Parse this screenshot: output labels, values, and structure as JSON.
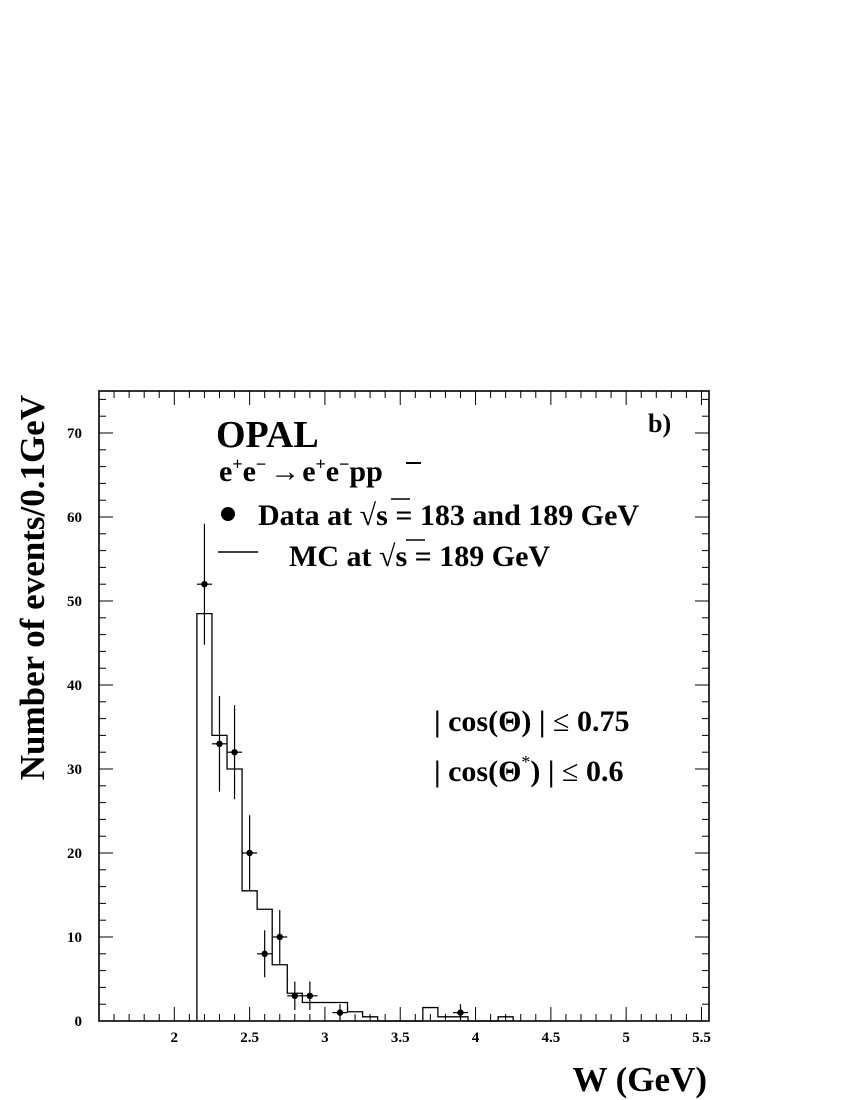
{
  "chart_data": {
    "type": "scatter",
    "title": "OPAL",
    "panel_label": "b)",
    "reaction": {
      "lhs": [
        "e",
        "+",
        "e",
        "−"
      ],
      "arrow": "→",
      "rhs": [
        "e",
        "+",
        "e",
        "−",
        "p",
        "p"
      ]
    },
    "legend": {
      "placement": "top",
      "data": {
        "prefix": "Data at ",
        "root": "√",
        "var": "s",
        "suffix": " = 183 and 189 GeV"
      },
      "mc": {
        "prefix": "MC at ",
        "root": "√",
        "var": "s",
        "suffix": " = 189 GeV"
      }
    },
    "cuts": {
      "cut1": {
        "open": "| cos(Θ) | ",
        "rel": "≤",
        "value": " 0.75"
      },
      "cut2": {
        "open": "| cos(Θ",
        "sup": "*",
        "close": ") | ",
        "rel": "≤",
        "value": " 0.6"
      }
    },
    "xlabel": "W (GeV)",
    "ylabel": "Number of events/0.1GeV",
    "xlim": [
      1.5,
      5.55
    ],
    "ylim": [
      0,
      75
    ],
    "xticks": [
      2,
      2.5,
      3,
      3.5,
      4,
      4.5,
      5,
      5.5
    ],
    "xtick_labels": [
      "2",
      "2.5",
      "3",
      "3.5",
      "4",
      "4.5",
      "5",
      "5.5"
    ],
    "yticks": [
      0,
      10,
      20,
      30,
      40,
      50,
      60,
      70
    ],
    "ytick_labels": [
      "0",
      "10",
      "20",
      "30",
      "40",
      "50",
      "60",
      "70"
    ],
    "grid": false,
    "data_points": {
      "name": "Data at √s = 183 and 189 GeV",
      "x": [
        2.2,
        2.3,
        2.4,
        2.5,
        2.6,
        2.7,
        2.8,
        2.9,
        3.1,
        3.9
      ],
      "y": [
        52,
        33,
        32,
        20,
        8,
        10,
        3,
        3,
        1,
        1
      ],
      "yerr": [
        7.2,
        5.7,
        5.6,
        4.5,
        2.8,
        3.2,
        1.7,
        1.7,
        1.0,
        1.0
      ]
    },
    "mc_histogram": {
      "name": "MC at √s = 189 GeV",
      "edges": [
        2.15,
        2.25,
        2.35,
        2.45,
        2.55,
        2.65,
        2.75,
        2.85,
        2.95,
        3.15,
        3.25,
        3.35,
        3.65,
        3.75,
        3.85,
        3.95,
        4.15,
        4.25
      ],
      "values": [
        48.5,
        34,
        30,
        15.5,
        13.3,
        6.7,
        3.3,
        2.2,
        2.2,
        1.1,
        0.5,
        0,
        1.6,
        0.5,
        0.5,
        0,
        0.5
      ]
    }
  }
}
